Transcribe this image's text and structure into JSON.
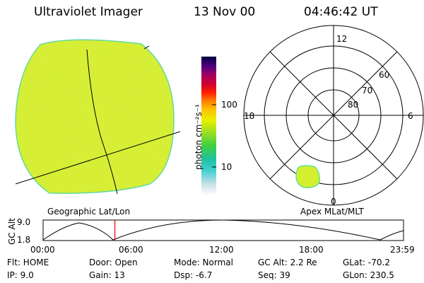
{
  "header": {
    "title": "Ultraviolet Imager",
    "date": "13 Nov 00",
    "time": "04:46:42 UT"
  },
  "colors": {
    "disk_fill": "#d8ef2e",
    "disk_edge": "#60d8a0",
    "oval_fill": "#d4ee30",
    "oval_edge": "#40e0a0",
    "time_marker": "#e00000"
  },
  "colorbar": {
    "unit_label": "photon cm⁻²s⁻¹",
    "ticks": [
      {
        "label": "100",
        "value": 100
      },
      {
        "label": "10",
        "value": 10
      }
    ]
  },
  "left_panel": {
    "label": "Geographic Lat/Lon"
  },
  "right_panel": {
    "label": "Apex MLat/MLT",
    "mlt_labels": {
      "top": "12",
      "left": "18",
      "right": "6",
      "bottom": "0"
    },
    "mlat_labels": [
      "60",
      "70",
      "80"
    ]
  },
  "altitude_plot": {
    "ylabel": "GC Alt",
    "ytick_top": "9.0",
    "ytick_bottom": "1.8",
    "xticks": [
      "00:00",
      "06:00",
      "12:00",
      "18:00",
      "23:59"
    ],
    "current_time_hours": 4.78
  },
  "status": {
    "filter": "Flt: HOME",
    "ip": "IP:  9.0",
    "door": "Door: Open",
    "gain": "Gain: 13",
    "mode": "Mode: Normal",
    "dsp": "Dsp:    -6.7",
    "gc_alt": "GC Alt: 2.2 Re",
    "seq": "Seq: 39",
    "glat": "GLat: -70.2",
    "glon": "GLon: 230.5"
  }
}
